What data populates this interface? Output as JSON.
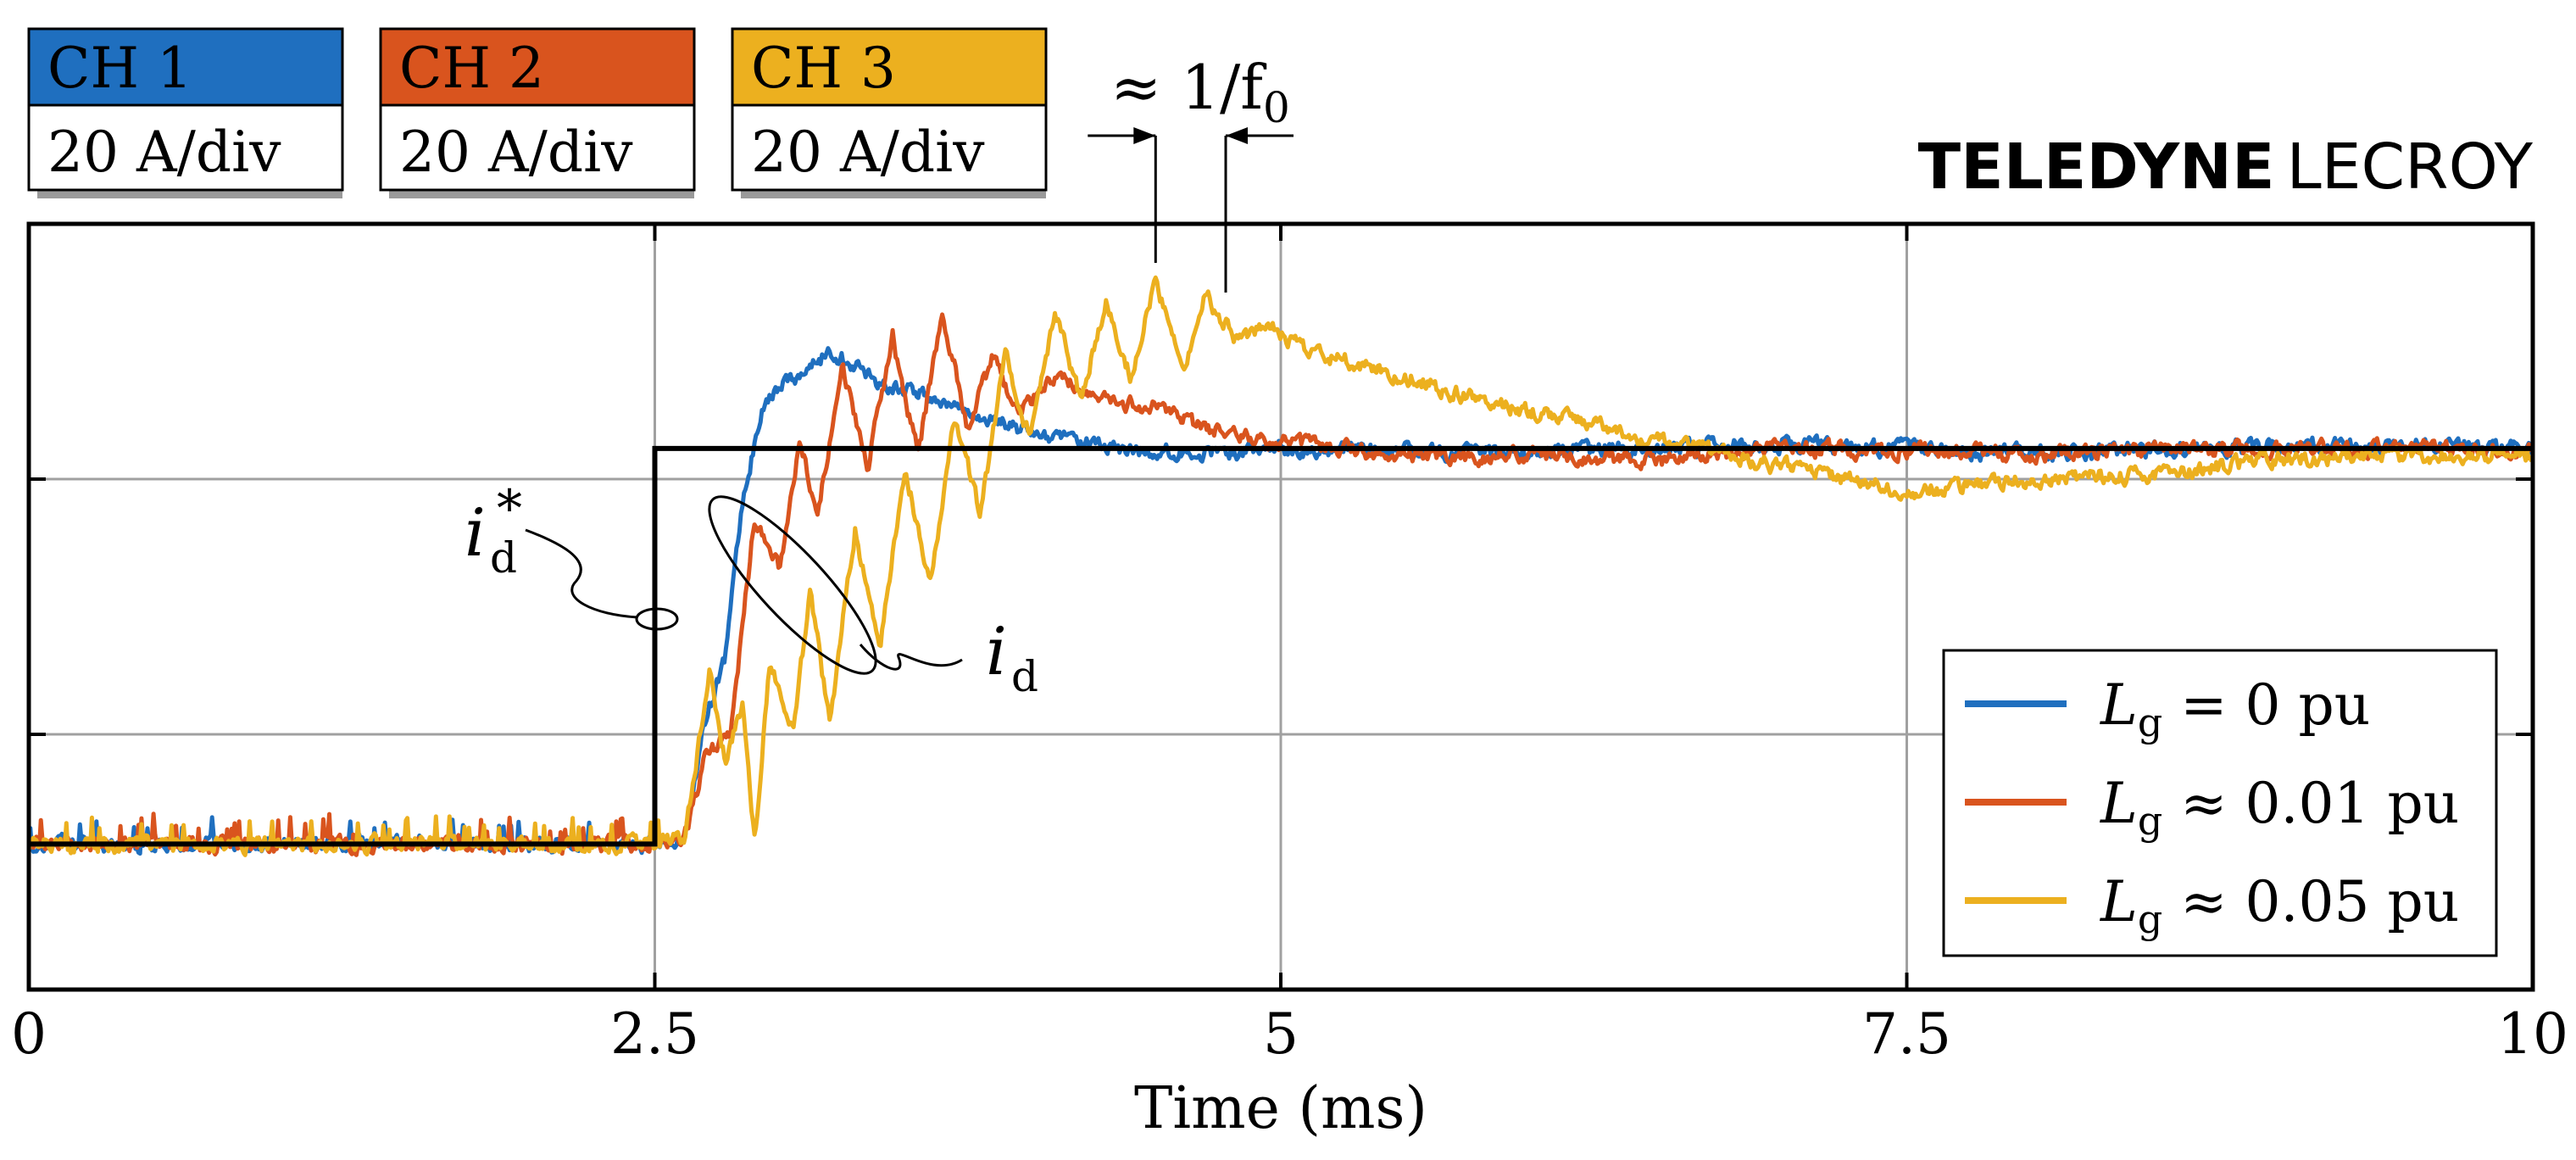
{
  "brand": {
    "name_bold": "TELEDYNE",
    "name_light": "LECROY"
  },
  "channels": [
    {
      "label": "CH 1",
      "scale": "20 A/div",
      "color": "#1f6fbf"
    },
    {
      "label": "CH 2",
      "scale": "20 A/div",
      "color": "#d9541e"
    },
    {
      "label": "CH 3",
      "scale": "20 A/div",
      "color": "#ecb01f"
    }
  ],
  "chart_data": {
    "type": "line",
    "title": "",
    "xlabel": "Time (ms)",
    "ylabel": "",
    "xlim": [
      0,
      10
    ],
    "ylim": [
      0,
      3
    ],
    "x_ticks": [
      0,
      2.5,
      5,
      7.5,
      10
    ],
    "x_tick_labels": [
      "0",
      "2.5",
      "5",
      "7.5",
      "10"
    ],
    "y_ticks": [
      1,
      2
    ],
    "grid": true,
    "legend_position": "bottom-right",
    "reference": {
      "name": "i_d*",
      "color": "#000000",
      "x": [
        0,
        2.5,
        2.5,
        10
      ],
      "y": [
        0.57,
        0.57,
        2.12,
        2.12
      ]
    },
    "series": [
      {
        "name": "Lg = 0 pu",
        "legend_var": "L",
        "legend_sub": "g",
        "legend_rel": "=",
        "legend_val": "0 pu",
        "color": "#1f6fbf",
        "x": [
          0,
          2.5,
          2.62,
          2.7,
          2.78,
          2.85,
          2.92,
          3.0,
          3.1,
          3.2,
          3.3,
          3.4,
          3.6,
          3.8,
          4.0,
          4.3,
          4.6,
          5.0,
          6.0,
          7.0,
          8.0,
          9.0,
          10.0
        ],
        "y": [
          0.57,
          0.57,
          0.6,
          1.05,
          1.3,
          1.9,
          2.25,
          2.38,
          2.42,
          2.5,
          2.45,
          2.38,
          2.32,
          2.25,
          2.18,
          2.12,
          2.1,
          2.12,
          2.1,
          2.14,
          2.1,
          2.13,
          2.12
        ]
      },
      {
        "name": "Lg ≈ 0.01 pu",
        "legend_var": "L",
        "legend_sub": "g",
        "legend_rel": "≈",
        "legend_val": "0.01 pu",
        "color": "#d9541e",
        "x": [
          0,
          2.5,
          2.62,
          2.7,
          2.8,
          2.9,
          3.0,
          3.08,
          3.15,
          3.25,
          3.35,
          3.45,
          3.55,
          3.65,
          3.75,
          3.85,
          3.95,
          4.1,
          4.3,
          4.5,
          4.7,
          4.9,
          5.2,
          5.6,
          6.0,
          6.5,
          7.0,
          8.0,
          9.0,
          10.0
        ],
        "y": [
          0.57,
          0.57,
          0.6,
          0.9,
          1.0,
          1.85,
          1.65,
          2.15,
          1.85,
          2.45,
          2.05,
          2.55,
          2.1,
          2.65,
          2.2,
          2.48,
          2.25,
          2.4,
          2.3,
          2.28,
          2.2,
          2.15,
          2.12,
          2.08,
          2.1,
          2.07,
          2.12,
          2.1,
          2.12,
          2.11
        ]
      },
      {
        "name": "Lg ≈ 0.05 pu",
        "legend_var": "L",
        "legend_sub": "g",
        "legend_rel": "≈",
        "legend_val": "0.05 pu",
        "color": "#ecb01f",
        "x": [
          0,
          2.5,
          2.62,
          2.68,
          2.72,
          2.78,
          2.85,
          2.9,
          2.96,
          3.05,
          3.12,
          3.2,
          3.3,
          3.4,
          3.5,
          3.6,
          3.7,
          3.8,
          3.9,
          4.0,
          4.1,
          4.2,
          4.3,
          4.4,
          4.5,
          4.62,
          4.7,
          4.82,
          4.95,
          5.1,
          5.3,
          5.5,
          5.8,
          6.1,
          6.5,
          7.0,
          7.5,
          8.0,
          8.5,
          9.0,
          10.0
        ],
        "y": [
          0.57,
          0.57,
          0.6,
          1.0,
          1.25,
          0.9,
          1.1,
          0.58,
          1.3,
          1.0,
          1.55,
          1.05,
          1.8,
          1.35,
          2.05,
          1.6,
          2.25,
          1.85,
          2.5,
          2.15,
          2.65,
          2.3,
          2.7,
          2.4,
          2.77,
          2.45,
          2.72,
          2.55,
          2.6,
          2.5,
          2.45,
          2.4,
          2.3,
          2.25,
          2.15,
          2.05,
          1.95,
          2.0,
          2.02,
          2.08,
          2.1
        ]
      }
    ],
    "annotations": {
      "period": {
        "text": "≈ 1/f",
        "sub": "0",
        "x_from": 4.5,
        "x_to": 4.78
      },
      "ref_label": {
        "var": "i",
        "sub": "d",
        "sup": "*"
      },
      "meas_label": {
        "var": "i",
        "sub": "d"
      }
    }
  }
}
